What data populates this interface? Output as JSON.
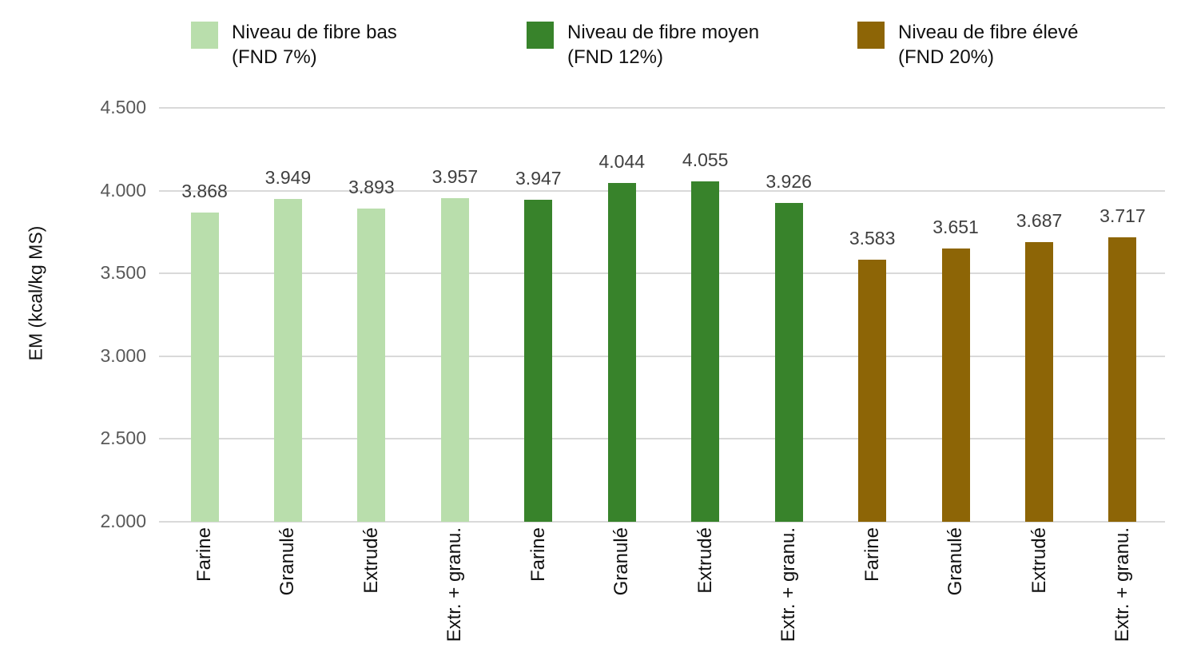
{
  "chart_data": {
    "type": "bar",
    "title": "",
    "xlabel": "",
    "ylabel": "EM (kcal/kg MS)",
    "ylim": [
      2000,
      4500
    ],
    "grid": true,
    "legend_position": "top",
    "yticks": [
      {
        "value": 4500,
        "label": "4.500"
      },
      {
        "value": 4000,
        "label": "4.000"
      },
      {
        "value": 3500,
        "label": "3.500"
      },
      {
        "value": 3000,
        "label": "3.000"
      },
      {
        "value": 2500,
        "label": "2.500"
      },
      {
        "value": 2000,
        "label": "2.000"
      }
    ],
    "categories_per_series": [
      "Farine",
      "Granulé",
      "Extrudé",
      "Extr. + granu."
    ],
    "series": [
      {
        "name": "Niveau de fibre bas (FND 7%)",
        "legend_lines": [
          "Niveau de fibre bas",
          "(FND 7%)"
        ],
        "color": "#b9deac",
        "values": [
          3868,
          3949,
          3893,
          3957
        ],
        "value_labels": [
          "3.868",
          "3.949",
          "3.893",
          "3.957"
        ]
      },
      {
        "name": "Niveau de fibre moyen (FND 12%)",
        "legend_lines": [
          "Niveau de fibre moyen",
          "(FND 12%)"
        ],
        "color": "#38832b",
        "values": [
          3947,
          4044,
          4055,
          3926
        ],
        "value_labels": [
          "3.947",
          "4.044",
          "4.055",
          "3.926"
        ]
      },
      {
        "name": "Niveau de fibre élevé (FND 20%)",
        "legend_lines": [
          "Niveau de fibre élevé",
          "(FND 20%)"
        ],
        "color": "#8d6506",
        "values": [
          3583,
          3651,
          3687,
          3717
        ],
        "value_labels": [
          "3.583",
          "3.651",
          "3.687",
          "3.717"
        ]
      }
    ],
    "colors": {
      "grid": "#d9d9d9",
      "tick_label": "#595959",
      "value_label": "#404040",
      "category_label": "#111111",
      "background": "#ffffff"
    }
  }
}
